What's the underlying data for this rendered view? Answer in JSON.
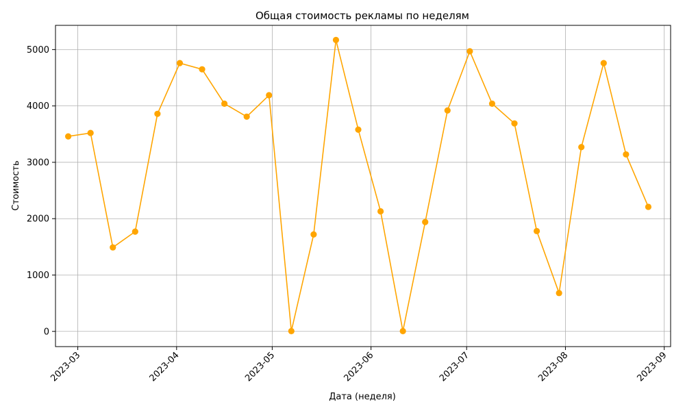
{
  "chart_data": {
    "type": "line",
    "title": "Общая стоимость рекламы по неделям",
    "xlabel": "Дата (неделя)",
    "ylabel": "Стоимость",
    "x_ticks": [
      "2023-03",
      "2023-04",
      "2023-05",
      "2023-06",
      "2023-07",
      "2023-08",
      "2023-09"
    ],
    "y_ticks": [
      0,
      1000,
      2000,
      3000,
      4000,
      5000
    ],
    "ylim": [
      -270,
      5430
    ],
    "xlim": [
      "2023-02-22",
      "2023-09-03"
    ],
    "grid": true,
    "color": "#FFA500",
    "series": [
      {
        "x": [
          "2023-02-26",
          "2023-03-05",
          "2023-03-12",
          "2023-03-19",
          "2023-03-26",
          "2023-04-02",
          "2023-04-09",
          "2023-04-16",
          "2023-04-23",
          "2023-04-30",
          "2023-05-07",
          "2023-05-14",
          "2023-05-21",
          "2023-05-28",
          "2023-06-04",
          "2023-06-11",
          "2023-06-18",
          "2023-06-25",
          "2023-07-02",
          "2023-07-09",
          "2023-07-16",
          "2023-07-23",
          "2023-07-30",
          "2023-08-06",
          "2023-08-13",
          "2023-08-20",
          "2023-08-27"
        ],
        "values": [
          3460,
          3520,
          1490,
          1770,
          3860,
          4760,
          4650,
          4040,
          3810,
          4190,
          5,
          1720,
          5170,
          3580,
          2130,
          5,
          1940,
          3920,
          4970,
          4040,
          3690,
          1780,
          680,
          3270,
          4760,
          3140,
          2210
        ]
      }
    ]
  }
}
